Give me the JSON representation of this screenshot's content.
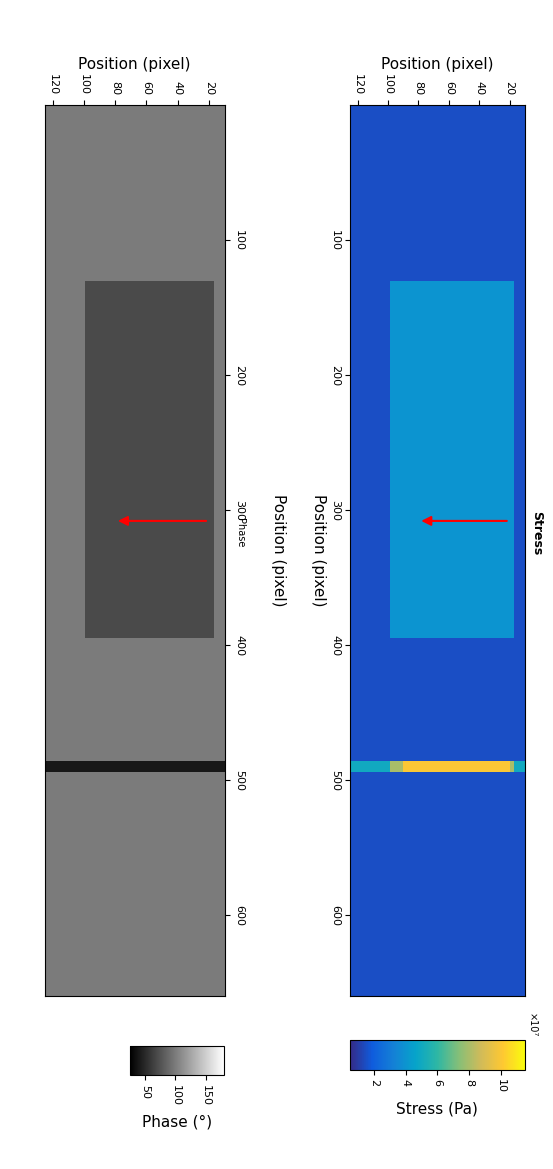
{
  "chart_data": [
    {
      "type": "heatmap",
      "title": "Phase",
      "x_label": "Position (pixel)",
      "y_label": "Position (pixel)",
      "color": "gray",
      "xlim": [
        125,
        10
      ],
      "xticks": [
        120,
        100,
        80,
        60,
        40,
        20
      ],
      "ylim": [
        660,
        0
      ],
      "yticks": [
        100,
        200,
        300,
        400,
        500,
        600
      ],
      "x_edges": [
        10,
        17,
        20,
        90,
        99,
        125
      ],
      "y_edges": [
        0,
        130,
        395,
        486,
        494,
        660
      ],
      "cells": [
        [
          100,
          100,
          100,
          100,
          100
        ],
        [
          100,
          70,
          70,
          70,
          100
        ],
        [
          100,
          100,
          100,
          100,
          100
        ],
        [
          40,
          40,
          40,
          40,
          40
        ],
        [
          100,
          100,
          100,
          100,
          100
        ]
      ],
      "colorbar_label": "Phase (°)",
      "colorbar_range": [
        25,
        180
      ],
      "colorbar_ticks": [
        50,
        100,
        150
      ],
      "arrow": {
        "from": [
          20,
          308
        ],
        "to": [
          80,
          308
        ],
        "color": "red"
      }
    },
    {
      "type": "heatmap",
      "title": "Stress",
      "x_label": "Position (pixel)",
      "y_label": "Position (pixel)",
      "color": "parula",
      "xlim": [
        125,
        10
      ],
      "xticks": [
        120,
        100,
        80,
        60,
        40,
        20
      ],
      "ylim": [
        660,
        0
      ],
      "yticks": [
        100,
        200,
        300,
        400,
        500,
        600
      ],
      "x_edges": [
        10,
        17,
        20,
        90,
        99,
        125
      ],
      "y_edges": [
        0,
        130,
        395,
        486,
        494,
        660
      ],
      "cells": [
        [
          15000000,
          15000000,
          15000000,
          15000000,
          15000000
        ],
        [
          15000000,
          40000000,
          40000000,
          40000000,
          15000000
        ],
        [
          15000000,
          15000000,
          15000000,
          15000000,
          15000000
        ],
        [
          50000000,
          80000000,
          100000000,
          80000000,
          50000000
        ],
        [
          15000000,
          15000000,
          15000000,
          15000000,
          15000000
        ]
      ],
      "colorbar_label": "Stress (Pa)",
      "colorbar_range": [
        5000000,
        115000000
      ],
      "colorbar_ticks": [
        {
          "value": 20000000,
          "label": "2"
        },
        {
          "value": 40000000,
          "label": "4"
        },
        {
          "value": 60000000,
          "label": "6"
        },
        {
          "value": 80000000,
          "label": "8"
        },
        {
          "value": 100000000,
          "label": "10"
        }
      ],
      "colorbar_multiplier": "×10⁷",
      "arrow": {
        "from": [
          20,
          308
        ],
        "to": [
          80,
          308
        ],
        "color": "red"
      }
    }
  ]
}
